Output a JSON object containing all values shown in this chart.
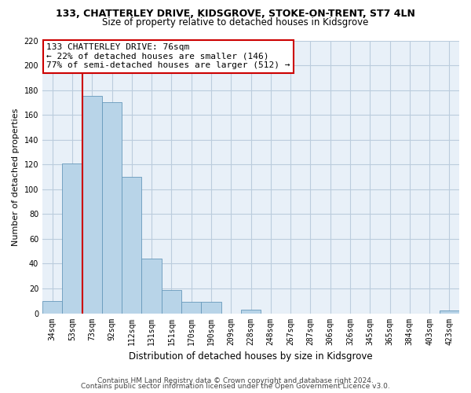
{
  "title1": "133, CHATTERLEY DRIVE, KIDSGROVE, STOKE-ON-TRENT, ST7 4LN",
  "title2": "Size of property relative to detached houses in Kidsgrove",
  "xlabel": "Distribution of detached houses by size in Kidsgrove",
  "ylabel": "Number of detached properties",
  "bar_labels": [
    "34sqm",
    "53sqm",
    "73sqm",
    "92sqm",
    "112sqm",
    "131sqm",
    "151sqm",
    "170sqm",
    "190sqm",
    "209sqm",
    "228sqm",
    "248sqm",
    "267sqm",
    "287sqm",
    "306sqm",
    "326sqm",
    "345sqm",
    "365sqm",
    "384sqm",
    "403sqm",
    "423sqm"
  ],
  "bar_values": [
    10,
    121,
    175,
    170,
    110,
    44,
    19,
    9,
    9,
    0,
    3,
    0,
    0,
    0,
    0,
    0,
    0,
    0,
    0,
    0,
    2
  ],
  "bar_color": "#b8d4e8",
  "bar_edge_color": "#6699bb",
  "plot_bg_color": "#e8f0f8",
  "ylim": [
    0,
    220
  ],
  "yticks": [
    0,
    20,
    40,
    60,
    80,
    100,
    120,
    140,
    160,
    180,
    200,
    220
  ],
  "property_line_color": "#cc0000",
  "annotation_title": "133 CHATTERLEY DRIVE: 76sqm",
  "annotation_line1": "← 22% of detached houses are smaller (146)",
  "annotation_line2": "77% of semi-detached houses are larger (512) →",
  "annotation_box_facecolor": "#ffffff",
  "annotation_box_edgecolor": "#cc0000",
  "footer1": "Contains HM Land Registry data © Crown copyright and database right 2024.",
  "footer2": "Contains public sector information licensed under the Open Government Licence v3.0.",
  "bg_color": "#ffffff",
  "grid_color": "#bbccdd",
  "title1_fontsize": 9,
  "title2_fontsize": 8.5,
  "ylabel_fontsize": 8,
  "xlabel_fontsize": 8.5,
  "tick_fontsize": 7,
  "annotation_fontsize": 8,
  "footer_fontsize": 6.5
}
